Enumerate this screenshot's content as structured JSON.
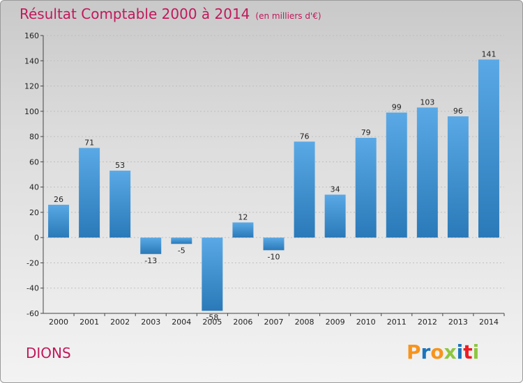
{
  "header": {
    "title": "Résultat Comptable 2000 à 2014",
    "subtitle": "(en milliers d'€)"
  },
  "footer": {
    "commune": "DIONS",
    "logo": {
      "letters": [
        "P",
        "r",
        "o",
        "x",
        "i",
        "t",
        "i"
      ],
      "colors": [
        "#f7941d",
        "#1c75bc",
        "#f7941d",
        "#8dc63f",
        "#1c75bc",
        "#ed1c24",
        "#8dc63f"
      ]
    }
  },
  "colors": {
    "title": "#c2185b",
    "bar_light": "#5aa9e6",
    "bar_dark": "#2a79b8",
    "axis": "#444444",
    "grid": "#bfbfbf"
  },
  "chart_data": {
    "type": "bar",
    "title": "Résultat Comptable 2000 à 2014",
    "subtitle": "(en milliers d'€)",
    "categories": [
      "2000",
      "2001",
      "2002",
      "2003",
      "2004",
      "2005",
      "2006",
      "2007",
      "2008",
      "2009",
      "2010",
      "2011",
      "2012",
      "2013",
      "2014"
    ],
    "values": [
      26,
      71,
      53,
      -13,
      -5,
      -58,
      12,
      -10,
      76,
      34,
      79,
      99,
      103,
      96,
      141
    ],
    "value_labels": [
      "26",
      "71",
      "53",
      "-13",
      "-5",
      "-58",
      "12",
      "-10",
      "76",
      "34",
      "79",
      "99",
      "103",
      "96",
      "141"
    ],
    "ylim": [
      -60,
      160
    ],
    "yticks": [
      -60,
      -40,
      -20,
      0,
      20,
      40,
      60,
      80,
      100,
      120,
      140,
      160
    ],
    "xlabel": "",
    "ylabel": "",
    "grid": true,
    "legend": "none"
  }
}
